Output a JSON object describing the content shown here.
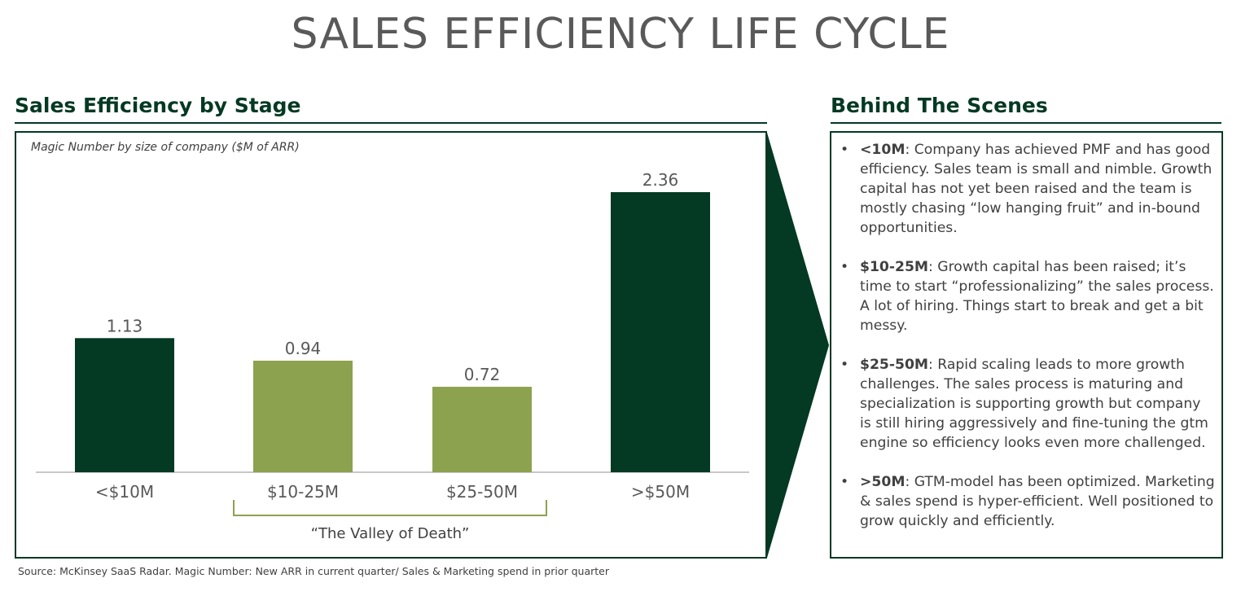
{
  "title": "SALES EFFICIENCY LIFE CYCLE",
  "left_panel": {
    "heading": "Sales Efficiency by Stage",
    "subtitle": "Magic Number by size of company ($M of ARR)",
    "valley_label": "“The Valley of Death”"
  },
  "right_panel": {
    "heading": "Behind The Scenes",
    "bullet_symbol": "•",
    "items": [
      {
        "term": "<10M",
        "text": ": Company has achieved PMF and has good efficiency. Sales team is small and nimble. Growth capital has not yet been raised and the team is mostly chasing “low hanging fruit” and in-bound opportunities."
      },
      {
        "term": "$10-25M",
        "text": ": Growth capital has been raised; it’s time to start “professionalizing” the sales process. A lot of hiring. Things start to break and get a bit messy."
      },
      {
        "term": "$25-50M",
        "text": ": Rapid scaling leads to more growth challenges. The sales process is maturing and specialization is supporting growth but company is still hiring aggressively and fine-tuning the gtm engine so efficiency looks even more challenged."
      },
      {
        "term": ">50M",
        "text": ": GTM-model has been optimized. Marketing & sales spend is hyper-efficient. Well positioned to grow quickly and efficiently."
      }
    ]
  },
  "source": "Source: McKinsey SaaS Radar. Magic Number: New ARR in current quarter/ Sales & Marketing spend in prior quarter",
  "colors": {
    "dark_green": "#043923",
    "light_green": "#8ca24f",
    "text_gray": "#595959"
  },
  "chart_data": {
    "type": "bar",
    "title": "Magic Number by size of company ($M of ARR)",
    "categories": [
      "<$10M",
      "$10-25M",
      "$25-50M",
      ">$50M"
    ],
    "values": [
      1.13,
      0.94,
      0.72,
      2.36
    ],
    "value_labels": [
      "1.13",
      "0.94",
      "0.72",
      "2.36"
    ],
    "bar_colors": [
      "#043923",
      "#8ca24f",
      "#8ca24f",
      "#043923"
    ],
    "ylim": [
      0,
      2.36
    ],
    "xlabel": "",
    "ylabel": "",
    "grid": false
  }
}
